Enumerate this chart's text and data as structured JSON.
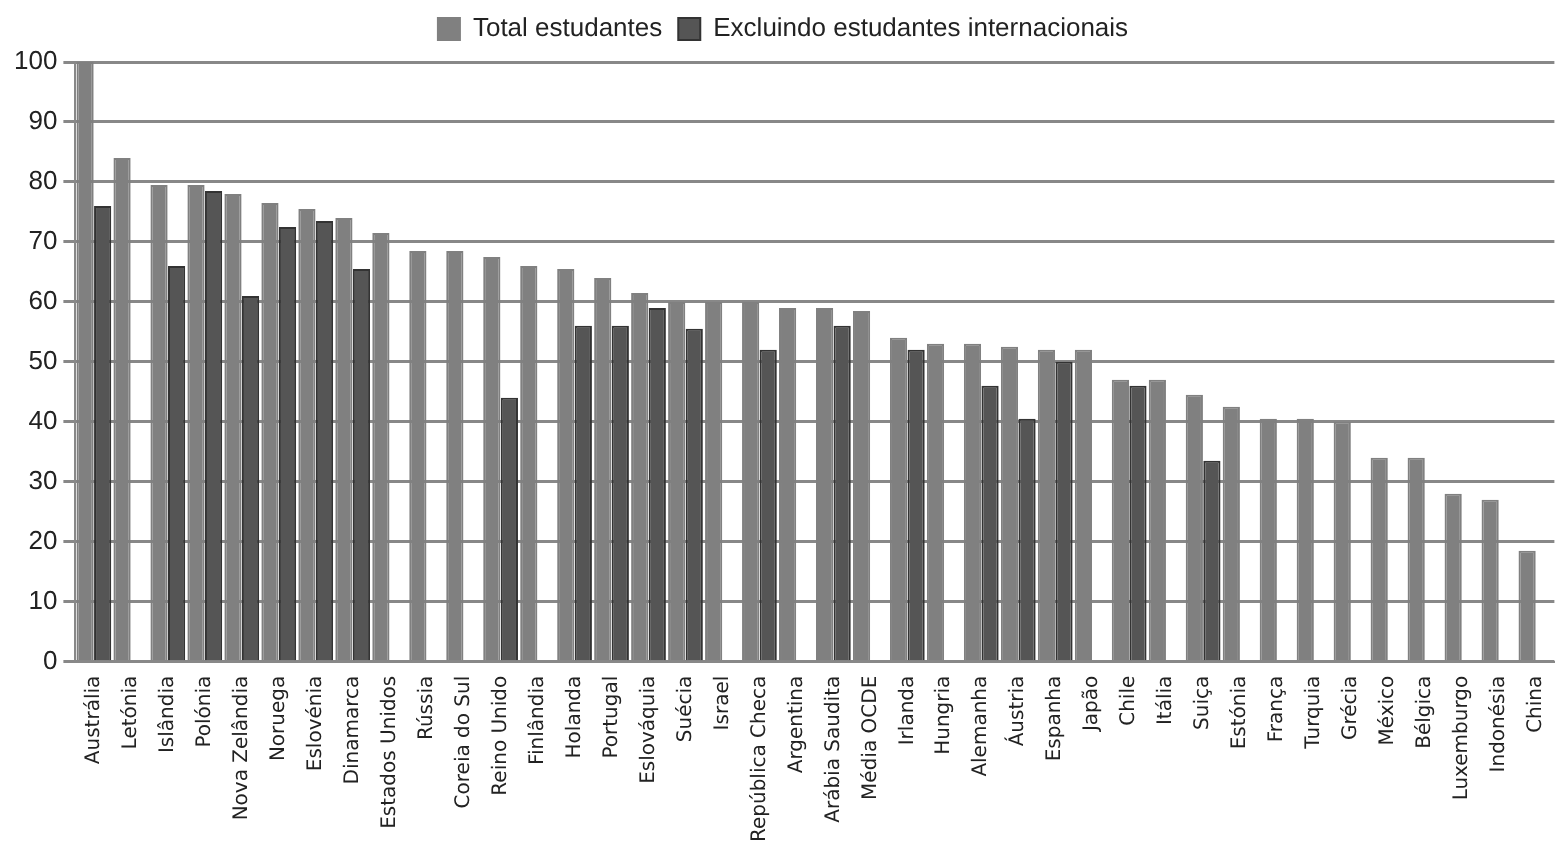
{
  "chart_data": {
    "type": "bar",
    "categories": [
      "Austrália",
      "Letónia",
      "Islândia",
      "Polónia",
      "Nova Zelândia",
      "Noruega",
      "Eslovénia",
      "Dinamarca",
      "Estados Unidos",
      "Rússia",
      "Coreia do Sul",
      "Reino Unido",
      "Finlândia",
      "Holanda",
      "Portugal",
      "Eslováquia",
      "Suécia",
      "Israel",
      "República Checa",
      "Argentina",
      "Arábia Saudita",
      "Média OCDE",
      "Irlanda",
      "Hungria",
      "Alemanha",
      "Áustria",
      "Espanha",
      "Japão",
      "Chile",
      "Itália",
      "Suiça",
      "Estónia",
      "França",
      "Turquia",
      "Grécia",
      "México",
      "Bélgica",
      "Luxemburgo",
      "Indonésia",
      "China"
    ],
    "series": [
      {
        "name": "Total estudantes",
        "color": "#808080",
        "values": [
          100,
          84,
          79.5,
          79.5,
          78,
          76.5,
          75.5,
          74,
          71.5,
          68.5,
          68.5,
          67.5,
          66,
          65.5,
          64,
          61.5,
          60,
          60,
          60,
          59,
          59,
          58.5,
          54,
          53,
          53,
          52.5,
          52,
          52,
          47,
          47,
          44.5,
          42.5,
          40.5,
          40.5,
          40,
          34,
          34,
          28,
          27,
          18.5
        ]
      },
      {
        "name": "Excluindo estudantes internacionais",
        "color": "#555555",
        "values": [
          76,
          null,
          66,
          78.5,
          61,
          72.5,
          73.5,
          65.5,
          null,
          null,
          null,
          44,
          null,
          56,
          56,
          59,
          55.5,
          null,
          52,
          null,
          56,
          null,
          52,
          null,
          46,
          40.5,
          50,
          null,
          46,
          null,
          33.5,
          null,
          null,
          null,
          null,
          null,
          null,
          null,
          null,
          null
        ]
      }
    ],
    "ylim": [
      0,
      100
    ],
    "yticks": [
      0,
      10,
      20,
      30,
      40,
      50,
      60,
      70,
      80,
      90,
      100
    ],
    "grid": "y",
    "legend": "top"
  }
}
